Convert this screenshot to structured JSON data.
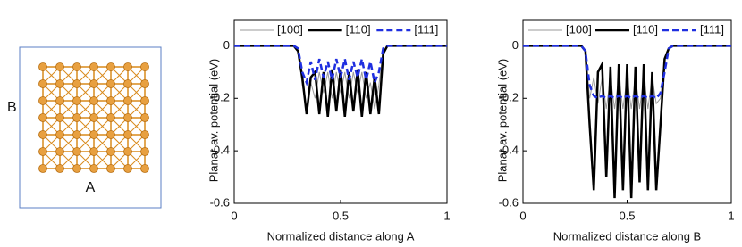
{
  "diagram": {
    "x_label": "A",
    "y_label": "B"
  },
  "chart_data": [
    {
      "type": "line",
      "xlabel": "Normalized distance along A",
      "ylabel": "Planar av. potential (eV)",
      "xlim": [
        0,
        1
      ],
      "ylim": [
        -0.6,
        0.1
      ],
      "xticks": [
        0,
        0.5,
        1
      ],
      "yticks": [
        0,
        -0.2,
        -0.4,
        -0.6
      ],
      "legend": "top",
      "x": [
        0,
        0.28,
        0.3,
        0.32,
        0.34,
        0.36,
        0.38,
        0.4,
        0.42,
        0.44,
        0.46,
        0.48,
        0.5,
        0.52,
        0.54,
        0.56,
        0.58,
        0.6,
        0.62,
        0.64,
        0.66,
        0.68,
        0.7,
        0.72,
        1
      ],
      "series": [
        {
          "name": "[100]",
          "color": "#999999",
          "width": 1,
          "style": "solid",
          "values": [
            0,
            0,
            -0.02,
            -0.15,
            -0.24,
            -0.14,
            -0.2,
            -0.1,
            -0.18,
            -0.1,
            -0.2,
            -0.1,
            -0.18,
            -0.1,
            -0.2,
            -0.1,
            -0.18,
            -0.1,
            -0.2,
            -0.14,
            -0.24,
            -0.15,
            -0.02,
            0,
            0
          ]
        },
        {
          "name": "[110]",
          "color": "#000000",
          "width": 2.5,
          "style": "solid",
          "values": [
            0,
            0,
            -0.02,
            -0.12,
            -0.26,
            -0.12,
            -0.1,
            -0.26,
            -0.1,
            -0.27,
            -0.09,
            -0.25,
            -0.09,
            -0.27,
            -0.1,
            -0.25,
            -0.09,
            -0.27,
            -0.1,
            -0.26,
            -0.12,
            -0.26,
            -0.03,
            0,
            0
          ]
        },
        {
          "name": "[111]",
          "color": "#1f2fe0",
          "width": 2.5,
          "style": "dashed",
          "values": [
            0,
            0,
            -0.01,
            -0.1,
            -0.14,
            -0.06,
            -0.13,
            -0.05,
            -0.12,
            -0.06,
            -0.13,
            -0.05,
            -0.12,
            -0.05,
            -0.13,
            -0.06,
            -0.12,
            -0.05,
            -0.13,
            -0.06,
            -0.14,
            -0.1,
            -0.01,
            0,
            0
          ]
        }
      ]
    },
    {
      "type": "line",
      "xlabel": "Normalized distance along B",
      "ylabel": "Planar av. potential (eV)",
      "xlim": [
        0,
        1
      ],
      "ylim": [
        -0.6,
        0.1
      ],
      "xticks": [
        0,
        0.5,
        1
      ],
      "yticks": [
        0,
        -0.2,
        -0.4,
        -0.6
      ],
      "legend": "top",
      "x": [
        0,
        0.28,
        0.3,
        0.32,
        0.34,
        0.36,
        0.38,
        0.4,
        0.42,
        0.44,
        0.46,
        0.48,
        0.5,
        0.52,
        0.54,
        0.56,
        0.58,
        0.6,
        0.62,
        0.64,
        0.66,
        0.68,
        0.7,
        0.72,
        1
      ],
      "series": [
        {
          "name": "[100]",
          "color": "#999999",
          "width": 1,
          "style": "solid",
          "values": [
            0,
            0,
            -0.02,
            -0.2,
            -0.12,
            -0.22,
            -0.12,
            -0.24,
            -0.12,
            -0.24,
            -0.12,
            -0.24,
            -0.12,
            -0.24,
            -0.12,
            -0.24,
            -0.12,
            -0.24,
            -0.12,
            -0.22,
            -0.2,
            -0.05,
            -0.01,
            0,
            0
          ]
        },
        {
          "name": "[110]",
          "color": "#000000",
          "width": 2.5,
          "style": "solid",
          "values": [
            0,
            0,
            -0.02,
            -0.3,
            -0.55,
            -0.1,
            -0.07,
            -0.5,
            -0.08,
            -0.58,
            -0.07,
            -0.55,
            -0.07,
            -0.58,
            -0.08,
            -0.52,
            -0.07,
            -0.55,
            -0.1,
            -0.55,
            -0.3,
            -0.05,
            -0.01,
            0,
            0
          ]
        },
        {
          "name": "[111]",
          "color": "#1f2fe0",
          "width": 2.5,
          "style": "dashed",
          "values": [
            0,
            0,
            -0.02,
            -0.15,
            -0.19,
            -0.2,
            -0.19,
            -0.2,
            -0.19,
            -0.2,
            -0.19,
            -0.2,
            -0.19,
            -0.2,
            -0.19,
            -0.2,
            -0.19,
            -0.2,
            -0.19,
            -0.2,
            -0.18,
            -0.1,
            -0.01,
            0,
            0
          ]
        }
      ]
    }
  ]
}
